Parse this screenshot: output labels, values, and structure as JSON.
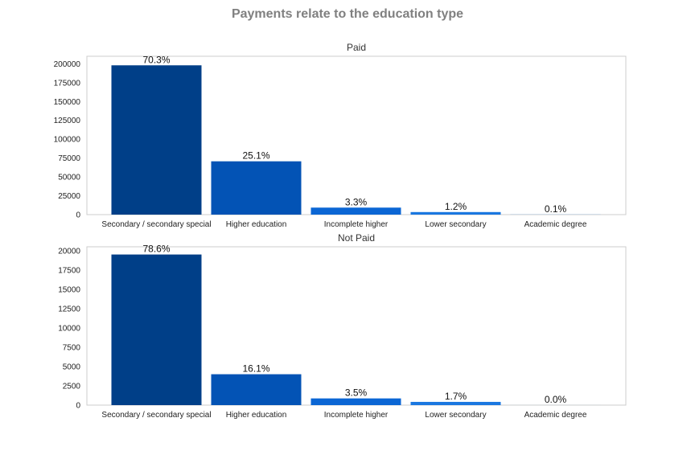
{
  "suptitle": "Payments relate to the education type",
  "chart_data": [
    {
      "type": "bar",
      "title": "Paid",
      "categories": [
        "Secondary / secondary special",
        "Higher education",
        "Incomplete higher",
        "Lower secondary",
        "Academic degree"
      ],
      "values": [
        198000,
        70700,
        9300,
        3400,
        150
      ],
      "data_labels": [
        "70.3%",
        "25.1%",
        "3.3%",
        "1.2%",
        "0.1%"
      ],
      "yticks": [
        0,
        25000,
        50000,
        75000,
        100000,
        125000,
        150000,
        175000,
        200000
      ],
      "ylim": [
        0,
        210000
      ],
      "grid": false,
      "colors": [
        "#003f88",
        "#0353b5",
        "#0b66d4",
        "#1a77e0",
        "#3a8fe8"
      ]
    },
    {
      "type": "bar",
      "title": "Not Paid",
      "categories": [
        "Secondary / secondary special",
        "Higher education",
        "Incomplete higher",
        "Lower secondary",
        "Academic degree"
      ],
      "values": [
        19500,
        4000,
        870,
        420,
        3
      ],
      "data_labels": [
        "78.6%",
        "16.1%",
        "3.5%",
        "1.7%",
        "0.0%"
      ],
      "yticks": [
        0,
        2500,
        5000,
        7500,
        10000,
        12500,
        15000,
        17500,
        20000
      ],
      "ylim": [
        0,
        20500
      ],
      "grid": false,
      "colors": [
        "#003f88",
        "#0353b5",
        "#0b66d4",
        "#1a77e0",
        "#3a8fe8"
      ]
    }
  ]
}
